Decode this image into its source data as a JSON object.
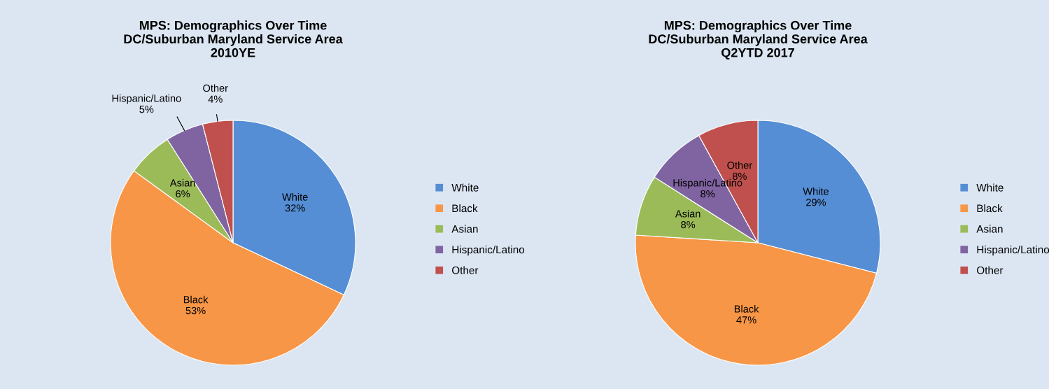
{
  "chart_data": [
    {
      "type": "pie",
      "title": "MPS: Demographics Over Time\nDC/Suburban Maryland Service Area\n2010YE",
      "categories": [
        "White",
        "Black",
        "Asian",
        "Hispanic/Latino",
        "Other"
      ],
      "values": [
        32,
        53,
        6,
        5,
        4
      ],
      "value_labels": [
        "32%",
        "53%",
        "6%",
        "5%",
        "4%"
      ],
      "colors": [
        "#558ed5",
        "#f79646",
        "#9bbb59",
        "#8064a2",
        "#c0504d"
      ],
      "legend": "right"
    },
    {
      "type": "pie",
      "title": "MPS: Demographics Over Time\nDC/Suburban Maryland Service Area\nQ2YTD 2017",
      "categories": [
        "White",
        "Black",
        "Asian",
        "Hispanic/Latino",
        "Other"
      ],
      "values": [
        29,
        47,
        8,
        8,
        8
      ],
      "value_labels": [
        "29%",
        "47%",
        "8%",
        "8%",
        "8%"
      ],
      "colors": [
        "#558ed5",
        "#f79646",
        "#9bbb59",
        "#8064a2",
        "#c0504d"
      ],
      "legend": "right"
    }
  ]
}
